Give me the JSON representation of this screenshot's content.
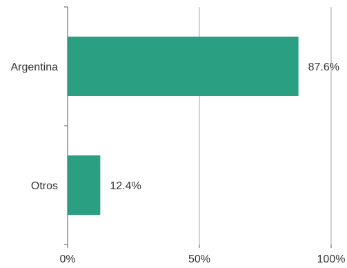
{
  "chart_data": {
    "type": "bar",
    "orientation": "horizontal",
    "categories": [
      "Argentina",
      "Otros"
    ],
    "values": [
      87.6,
      12.4
    ],
    "data_labels": [
      "87.6%",
      "12.4%"
    ],
    "xlim": [
      0,
      100
    ],
    "x_ticks": [
      0,
      50,
      100
    ],
    "x_tick_labels": [
      "0%",
      "50%",
      "100%"
    ],
    "grid": "vertical",
    "legend": "none",
    "title": "",
    "xlabel": "",
    "ylabel": "",
    "colors": {
      "bar": "#2a9f82",
      "grid": "#a6a6a6",
      "axis": "#555555",
      "text": "#333333"
    }
  }
}
